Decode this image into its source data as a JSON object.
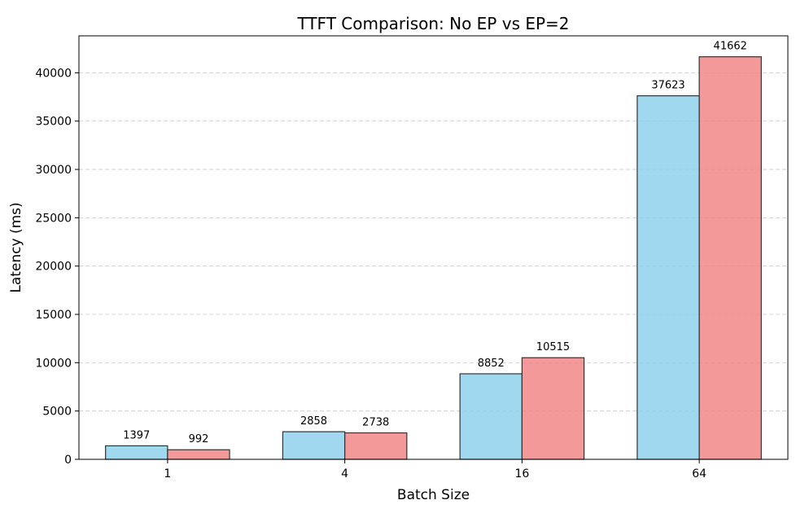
{
  "chart_data": {
    "type": "bar",
    "title": "TTFT Comparison: No EP vs EP=2",
    "xlabel": "Batch Size",
    "ylabel": "Latency (ms)",
    "categories": [
      "1",
      "4",
      "16",
      "64"
    ],
    "series": [
      {
        "color": "#87CEEB",
        "values": [
          1397,
          2858,
          8852,
          37623
        ]
      },
      {
        "color": "#F08080",
        "values": [
          992,
          2738,
          10515,
          41662
        ]
      }
    ],
    "ylim": [
      0,
      43826
    ],
    "yticks": [
      0,
      5000,
      10000,
      15000,
      20000,
      25000,
      30000,
      35000,
      40000
    ],
    "grid": {
      "axis": "y",
      "style": "dashed"
    },
    "legend": "none"
  }
}
